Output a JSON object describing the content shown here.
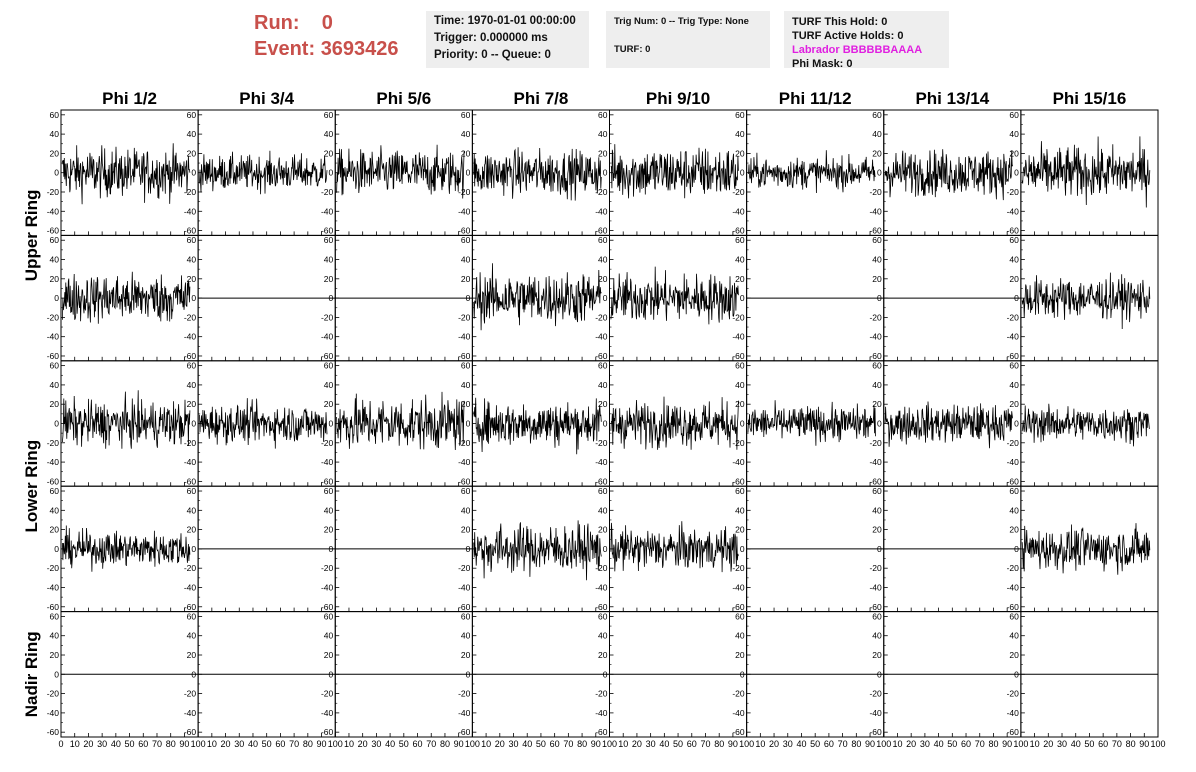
{
  "header": {
    "run_label": "Run:",
    "run_value": "0",
    "event_label": "Event:",
    "event_value": "3693426",
    "time_line": "Time: 1970-01-01 00:00:00",
    "trigger_line": "Trigger: 0.000000 ms",
    "priority_line": "Priority: 0 -- Queue: 0",
    "trig_line": "Trig Num: 0 -- Trig Type: None",
    "turf_line": "TURF: 0",
    "turf_hold_line": "TURF This Hold: 0",
    "turf_active_line": "TURF Active Holds: 0",
    "labrador_line": "Labrador BBBBBBAAAA",
    "phi_mask_line": "Phi Mask: 0"
  },
  "colors": {
    "run_text": "#c8504b",
    "labrador": "#e020e0",
    "info_bg": "#eeeeee",
    "trace": "#000000"
  },
  "chart_data": {
    "type": "line",
    "columns": [
      "Phi 1/2",
      "Phi 3/4",
      "Phi 5/6",
      "Phi 7/8",
      "Phi 9/10",
      "Phi 11/12",
      "Phi 13/14",
      "Phi 15/16"
    ],
    "ring_labels": [
      "Upper Ring",
      "Lower Ring",
      "Nadir Ring"
    ],
    "xlim": [
      0,
      100
    ],
    "ylim": [
      -65,
      65
    ],
    "x_ticks": [
      0,
      10,
      20,
      30,
      40,
      50,
      60,
      70,
      80,
      90,
      100
    ],
    "y_ticks": [
      -60,
      -40,
      -20,
      0,
      20,
      40,
      60
    ],
    "rows": [
      {
        "ring": "Upper Ring",
        "amplitude": [
          14,
          10,
          13,
          13,
          15,
          9,
          13,
          15
        ],
        "active": [
          1,
          1,
          1,
          1,
          1,
          1,
          1,
          1
        ]
      },
      {
        "ring": "Upper Ring",
        "amplitude": [
          14,
          0,
          0,
          15,
          14,
          0,
          0,
          12
        ],
        "active": [
          1,
          0,
          0,
          1,
          1,
          0,
          0,
          1
        ]
      },
      {
        "ring": "Lower Ring",
        "amplitude": [
          13,
          11,
          15,
          13,
          13,
          10,
          11,
          10
        ],
        "active": [
          1,
          1,
          1,
          1,
          1,
          1,
          1,
          1
        ]
      },
      {
        "ring": "Lower Ring",
        "amplitude": [
          10,
          0,
          0,
          14,
          12,
          0,
          0,
          12
        ],
        "active": [
          1,
          0,
          0,
          1,
          1,
          0,
          0,
          1
        ]
      },
      {
        "ring": "Nadir Ring",
        "amplitude": [
          0,
          0,
          0,
          0,
          0,
          0,
          0,
          0
        ],
        "active": [
          0,
          0,
          0,
          0,
          0,
          0,
          0,
          0
        ]
      }
    ]
  }
}
